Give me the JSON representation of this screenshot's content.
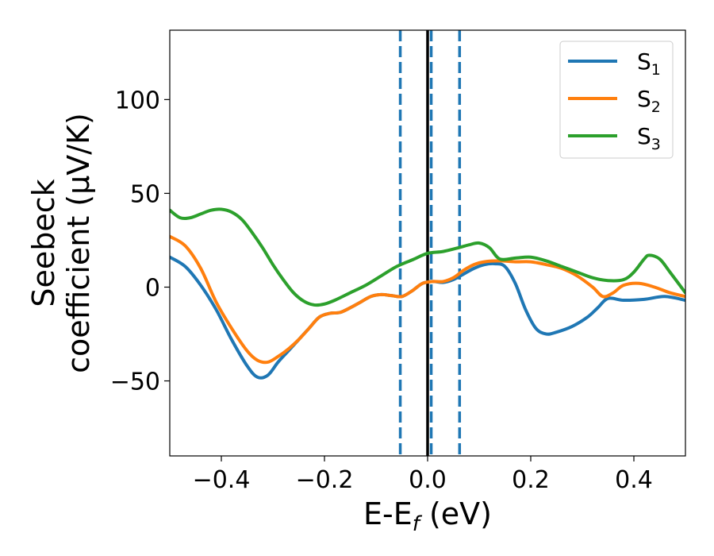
{
  "chart_data": {
    "type": "line",
    "xlabel_main": "E-E",
    "xlabel_sub": "f",
    "xlabel_unit": " (eV)",
    "ylabel_line1": "Seebeck",
    "ylabel_line2": "coefficient  (μV/K)",
    "xlim": [
      -0.5,
      0.5
    ],
    "ylim": [
      -90,
      137
    ],
    "xticks": [
      -0.4,
      -0.2,
      0.0,
      0.2,
      0.4
    ],
    "xtick_labels": [
      "−0.4",
      "−0.2",
      "0.0",
      "0.2",
      "0.4"
    ],
    "yticks": [
      -50,
      0,
      50,
      100
    ],
    "ytick_labels": [
      "−50",
      "0",
      "50",
      "100"
    ],
    "grid": false,
    "legend_position": "top-right",
    "vlines": [
      {
        "x": 0.0,
        "style": "solid",
        "color": "#000000"
      },
      {
        "x": -0.053,
        "style": "dashed",
        "color": "#1f77b4"
      },
      {
        "x": 0.007,
        "style": "dashed",
        "color": "#1f77b4"
      },
      {
        "x": 0.062,
        "style": "dashed",
        "color": "#1f77b4"
      }
    ],
    "series": [
      {
        "name": "S",
        "subscript": "1",
        "color": "#1f77b4",
        "points": [
          [
            -0.5,
            16
          ],
          [
            -0.47,
            11
          ],
          [
            -0.44,
            1
          ],
          [
            -0.41,
            -12
          ],
          [
            -0.38,
            -28
          ],
          [
            -0.35,
            -42
          ],
          [
            -0.33,
            -48
          ],
          [
            -0.31,
            -47
          ],
          [
            -0.29,
            -40
          ],
          [
            -0.27,
            -34
          ],
          [
            -0.25,
            -28
          ],
          [
            -0.23,
            -22
          ],
          [
            -0.21,
            -16
          ],
          [
            -0.19,
            -14
          ],
          [
            -0.17,
            -13.5
          ],
          [
            -0.15,
            -11
          ],
          [
            -0.13,
            -8
          ],
          [
            -0.11,
            -5
          ],
          [
            -0.09,
            -4
          ],
          [
            -0.07,
            -4.5
          ],
          [
            -0.05,
            -5
          ],
          [
            -0.03,
            -2
          ],
          [
            -0.01,
            2
          ],
          [
            0.01,
            3
          ],
          [
            0.03,
            2.5
          ],
          [
            0.05,
            4
          ],
          [
            0.07,
            7
          ],
          [
            0.09,
            10
          ],
          [
            0.11,
            12
          ],
          [
            0.13,
            12.5
          ],
          [
            0.15,
            11
          ],
          [
            0.17,
            2
          ],
          [
            0.19,
            -12
          ],
          [
            0.21,
            -22
          ],
          [
            0.23,
            -25
          ],
          [
            0.25,
            -24
          ],
          [
            0.28,
            -21
          ],
          [
            0.31,
            -16
          ],
          [
            0.33,
            -11
          ],
          [
            0.35,
            -6
          ],
          [
            0.38,
            -7
          ],
          [
            0.42,
            -6.5
          ],
          [
            0.46,
            -5
          ],
          [
            0.5,
            -7
          ]
        ]
      },
      {
        "name": "S",
        "subscript": "2",
        "color": "#ff7f0e",
        "points": [
          [
            -0.5,
            27
          ],
          [
            -0.47,
            22
          ],
          [
            -0.44,
            10
          ],
          [
            -0.41,
            -8
          ],
          [
            -0.38,
            -22
          ],
          [
            -0.35,
            -34
          ],
          [
            -0.33,
            -39
          ],
          [
            -0.31,
            -40
          ],
          [
            -0.29,
            -37
          ],
          [
            -0.27,
            -33
          ],
          [
            -0.25,
            -28
          ],
          [
            -0.23,
            -22
          ],
          [
            -0.21,
            -16
          ],
          [
            -0.19,
            -14
          ],
          [
            -0.17,
            -13.5
          ],
          [
            -0.15,
            -11
          ],
          [
            -0.13,
            -8
          ],
          [
            -0.11,
            -5
          ],
          [
            -0.09,
            -4
          ],
          [
            -0.07,
            -4.5
          ],
          [
            -0.05,
            -5
          ],
          [
            -0.03,
            -2
          ],
          [
            -0.01,
            2
          ],
          [
            0.01,
            3
          ],
          [
            0.03,
            3
          ],
          [
            0.05,
            5
          ],
          [
            0.07,
            9
          ],
          [
            0.09,
            12
          ],
          [
            0.11,
            13.5
          ],
          [
            0.14,
            14
          ],
          [
            0.17,
            13.5
          ],
          [
            0.2,
            13.5
          ],
          [
            0.23,
            12
          ],
          [
            0.26,
            10
          ],
          [
            0.29,
            6
          ],
          [
            0.32,
            0
          ],
          [
            0.34,
            -5
          ],
          [
            0.36,
            -3
          ],
          [
            0.38,
            1
          ],
          [
            0.41,
            2
          ],
          [
            0.44,
            0
          ],
          [
            0.47,
            -3
          ],
          [
            0.5,
            -5
          ]
        ]
      },
      {
        "name": "S",
        "subscript": "3",
        "color": "#2ca02c",
        "points": [
          [
            -0.5,
            41
          ],
          [
            -0.48,
            37
          ],
          [
            -0.46,
            37
          ],
          [
            -0.44,
            39
          ],
          [
            -0.42,
            41
          ],
          [
            -0.4,
            41.5
          ],
          [
            -0.38,
            40
          ],
          [
            -0.36,
            36
          ],
          [
            -0.34,
            29
          ],
          [
            -0.32,
            21
          ],
          [
            -0.3,
            12
          ],
          [
            -0.28,
            4
          ],
          [
            -0.26,
            -3
          ],
          [
            -0.24,
            -7.5
          ],
          [
            -0.22,
            -9.5
          ],
          [
            -0.2,
            -9
          ],
          [
            -0.18,
            -7
          ],
          [
            -0.15,
            -3
          ],
          [
            -0.12,
            1
          ],
          [
            -0.09,
            6
          ],
          [
            -0.06,
            11
          ],
          [
            -0.03,
            14.5
          ],
          [
            0.0,
            18
          ],
          [
            0.03,
            19
          ],
          [
            0.06,
            21
          ],
          [
            0.08,
            22.5
          ],
          [
            0.1,
            23.5
          ],
          [
            0.12,
            21
          ],
          [
            0.14,
            15
          ],
          [
            0.17,
            15.5
          ],
          [
            0.2,
            16
          ],
          [
            0.23,
            14
          ],
          [
            0.26,
            11
          ],
          [
            0.29,
            8
          ],
          [
            0.32,
            5
          ],
          [
            0.35,
            3.5
          ],
          [
            0.38,
            4
          ],
          [
            0.4,
            8
          ],
          [
            0.42,
            15
          ],
          [
            0.43,
            17
          ],
          [
            0.45,
            15
          ],
          [
            0.47,
            8
          ],
          [
            0.5,
            -3
          ]
        ]
      }
    ]
  }
}
